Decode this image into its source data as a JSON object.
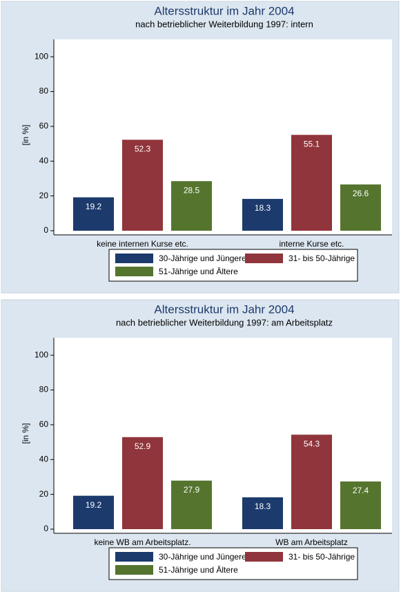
{
  "chart_data": [
    {
      "type": "bar",
      "title": "Altersstruktur im Jahr 2004",
      "subtitle": "nach betrieblicher Weiterbildung 1997: intern",
      "y_label": "[in %]",
      "categories": [
        "keine internen Kurse etc.",
        "interne Kurse etc."
      ],
      "series": [
        {
          "name": "30-Jährige und Jüngere",
          "color": "#1c3a6c",
          "values": [
            19.2,
            18.3
          ]
        },
        {
          "name": "31- bis 50-Jährige",
          "color": "#90353b",
          "values": [
            52.3,
            55.1
          ]
        },
        {
          "name": "51-Jährige und Ältere",
          "color": "#55752f",
          "values": [
            28.5,
            26.6
          ]
        }
      ],
      "ylim": [
        0,
        110
      ],
      "yticks": [
        0,
        20,
        40,
        60,
        80,
        100
      ]
    },
    {
      "type": "bar",
      "title": "Altersstruktur im Jahr 2004",
      "subtitle": "nach betrieblicher Weiterbildung 1997: am Arbeitsplatz",
      "y_label": "[in %]",
      "categories": [
        "keine WB am Arbeitsplatz.",
        "WB am Arbeitsplatz"
      ],
      "series": [
        {
          "name": "30-Jährige und Jüngere",
          "color": "#1c3a6c",
          "values": [
            19.2,
            18.3
          ]
        },
        {
          "name": "31- bis 50-Jährige",
          "color": "#90353b",
          "values": [
            52.9,
            54.3
          ]
        },
        {
          "name": "51-Jährige und Ältere",
          "color": "#55752f",
          "values": [
            27.9,
            27.4
          ]
        }
      ],
      "ylim": [
        0,
        110
      ],
      "yticks": [
        0,
        20,
        40,
        60,
        80,
        100
      ]
    }
  ]
}
